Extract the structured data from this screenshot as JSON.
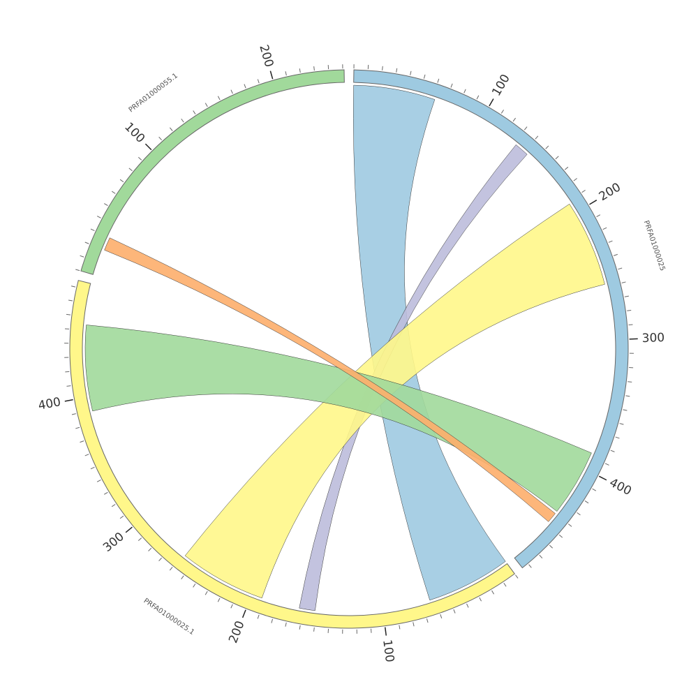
{
  "chart_data": {
    "type": "chord",
    "minor_tick_interval": 10,
    "segments": [
      {
        "name": "PRFA01000025",
        "length": 485,
        "color": "#9ecae1",
        "ticks": [
          100,
          200,
          300,
          400
        ]
      },
      {
        "name": "PRFA01000025.1",
        "length": 485,
        "color": "#fff78a",
        "ticks": [
          100,
          200,
          300,
          400
        ]
      },
      {
        "name": "PRFA01000055.1",
        "length": 251,
        "color": "#a1d99b",
        "ticks": [
          100,
          200
        ]
      }
    ],
    "links": [
      {
        "color": "#9ecae1",
        "source": {
          "segment": 0,
          "start": 0,
          "end": 62
        },
        "target": {
          "segment": 1,
          "start": 0,
          "end": 64
        }
      },
      {
        "color": "#bcbddc",
        "source": {
          "segment": 0,
          "start": 132,
          "end": 143
        },
        "target": {
          "segment": 1,
          "start": 151,
          "end": 163
        }
      },
      {
        "color": "#fff78a",
        "source": {
          "segment": 0,
          "start": 192,
          "end": 258
        },
        "target": {
          "segment": 1,
          "start": 192,
          "end": 258
        }
      },
      {
        "color": "#a1d99b",
        "source": {
          "segment": 0,
          "start": 387,
          "end": 438
        },
        "target": {
          "segment": 1,
          "start": 389,
          "end": 454
        }
      },
      {
        "color": "#fdae6b",
        "source": {
          "segment": 0,
          "start": 440,
          "end": 448
        },
        "target": {
          "segment": 2,
          "start": 20,
          "end": 30
        }
      }
    ]
  }
}
